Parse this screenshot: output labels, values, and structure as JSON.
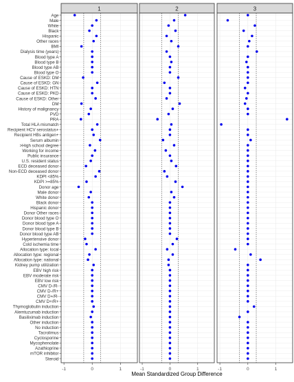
{
  "chart_data": {
    "type": "scatter",
    "xlabel": "Mean Standardized Group Difference",
    "xlim": [
      -1.1,
      1.6
    ],
    "x_ticks": [
      "-1",
      "0",
      "1"
    ],
    "x_tick_values": [
      -1,
      0,
      1
    ],
    "reference_lines": [
      -0.3,
      0.3
    ],
    "panels": [
      "1",
      "2",
      "3"
    ],
    "categories": [
      "Age",
      "Male",
      "White",
      "Black",
      "Hispanic",
      "Other races",
      "BMI",
      "Dialysis time (years)",
      "Blood type A",
      "Blood type B",
      "Blood type AB",
      "Blood type O",
      "Cause of ESKD: DM",
      "Cause of ESKD: GN",
      "Cause of ESKD: HTN",
      "Cause of ESKD: PKD",
      "Cause of ESKD: Other",
      "DM",
      "History of malignancy",
      "PVD",
      "PRA",
      "Total HLA mismatch",
      "Recipient HCV serostatus+",
      "Recipient HBs antigen+",
      "Serum albumin",
      ">High school degree",
      "Working for income",
      "Public insurance",
      "U.S. resident status",
      "ECD deceased donor",
      "Non-ECD deceased donor",
      "KDPI <85%",
      "KDPI >=85%",
      "Donor age",
      "Male donor",
      "White donor",
      "Black donor",
      "Hispanic donor",
      "Donor Other races",
      "Donor blood type O",
      "Donor blood type A",
      "Donor blood type B",
      "Donor blood type AB",
      "Hypertensive donor",
      "Cold ischemia time",
      "Allocation type: local",
      "Allocation type: regional",
      "Allocation type: national",
      "Kidney pump utilization",
      "EBV high risk",
      "EBV moderate risk",
      "EBV low risk",
      "CMV D-/R-",
      "CMV D-/R+",
      "CMV D+/R-",
      "CMV D+/R+",
      "Thymoglobulin induction",
      "Alemtuzumab induction",
      "Basiliximab induction",
      "Other induction",
      "No induction",
      "Tacrolimus",
      "Cyclosporine",
      "Mycophenolate",
      "Azathioprine",
      "mTOR inhibitor",
      "Steroid"
    ],
    "series": [
      {
        "values": [
          -0.62,
          0.15,
          0.0,
          -0.1,
          0.15,
          0.05,
          -0.38,
          0.0,
          0.0,
          0.0,
          0.0,
          0.0,
          -0.32,
          0.18,
          0.0,
          0.0,
          0.12,
          -0.38,
          -0.05,
          -0.12,
          -0.4,
          0.18,
          0.0,
          0.05,
          0.28,
          -0.08,
          0.1,
          0.0,
          -0.05,
          -0.22,
          0.25,
          0.12,
          -0.2,
          -0.48,
          -0.05,
          -0.12,
          0.0,
          0.0,
          0.0,
          0.0,
          0.0,
          0.0,
          0.0,
          -0.25,
          -0.2,
          0.12,
          -0.1,
          -0.15,
          0.05,
          0.0,
          0.0,
          0.0,
          0.0,
          0.0,
          0.0,
          0.0,
          0.05,
          0.0,
          -0.05,
          0.0,
          0.0,
          0.0,
          0.0,
          0.0,
          0.0,
          0.0,
          0.0
        ]
      },
      {
        "values": [
          0.55,
          0.15,
          -0.05,
          0.2,
          -0.12,
          0.05,
          0.3,
          -0.12,
          0.0,
          0.05,
          0.0,
          0.0,
          0.3,
          -0.2,
          0.0,
          0.0,
          -0.12,
          0.35,
          0.1,
          -0.05,
          -0.45,
          0.05,
          0.0,
          0.0,
          -0.25,
          0.15,
          -0.15,
          0.0,
          0.05,
          0.22,
          -0.2,
          -0.1,
          0.2,
          0.45,
          0.05,
          0.15,
          0.0,
          0.0,
          0.0,
          0.0,
          0.0,
          0.0,
          0.0,
          0.25,
          0.1,
          -0.1,
          0.1,
          -0.05,
          -0.05,
          0.0,
          0.0,
          0.0,
          0.0,
          0.0,
          0.0,
          0.0,
          0.0,
          0.0,
          0.0,
          0.0,
          0.0,
          0.0,
          0.0,
          0.0,
          0.0,
          0.0,
          0.0
        ]
      },
      {
        "values": [
          0.0,
          -0.72,
          0.25,
          -0.15,
          0.15,
          0.05,
          0.0,
          0.32,
          0.0,
          -0.05,
          0.0,
          0.0,
          0.0,
          0.0,
          -0.1,
          0.0,
          -0.05,
          -0.1,
          0.0,
          0.0,
          1.4,
          -0.95,
          0.0,
          0.0,
          0.1,
          0.0,
          0.0,
          0.0,
          0.0,
          0.0,
          0.0,
          0.0,
          0.0,
          0.0,
          0.0,
          0.0,
          0.0,
          0.0,
          0.0,
          0.0,
          0.0,
          0.0,
          0.0,
          0.0,
          0.0,
          -0.45,
          0.1,
          0.45,
          0.0,
          0.0,
          0.0,
          0.0,
          0.0,
          0.0,
          0.0,
          0.0,
          0.22,
          0.0,
          -0.3,
          0.0,
          0.0,
          0.0,
          0.0,
          0.0,
          0.0,
          0.0,
          0.0
        ]
      }
    ],
    "point_color": "#0000ee",
    "grid": true,
    "strip_fill": "#d9d9d9",
    "panel_border": "#333333",
    "grid_color": "#ebebeb",
    "ref_line_color": "#555555"
  }
}
